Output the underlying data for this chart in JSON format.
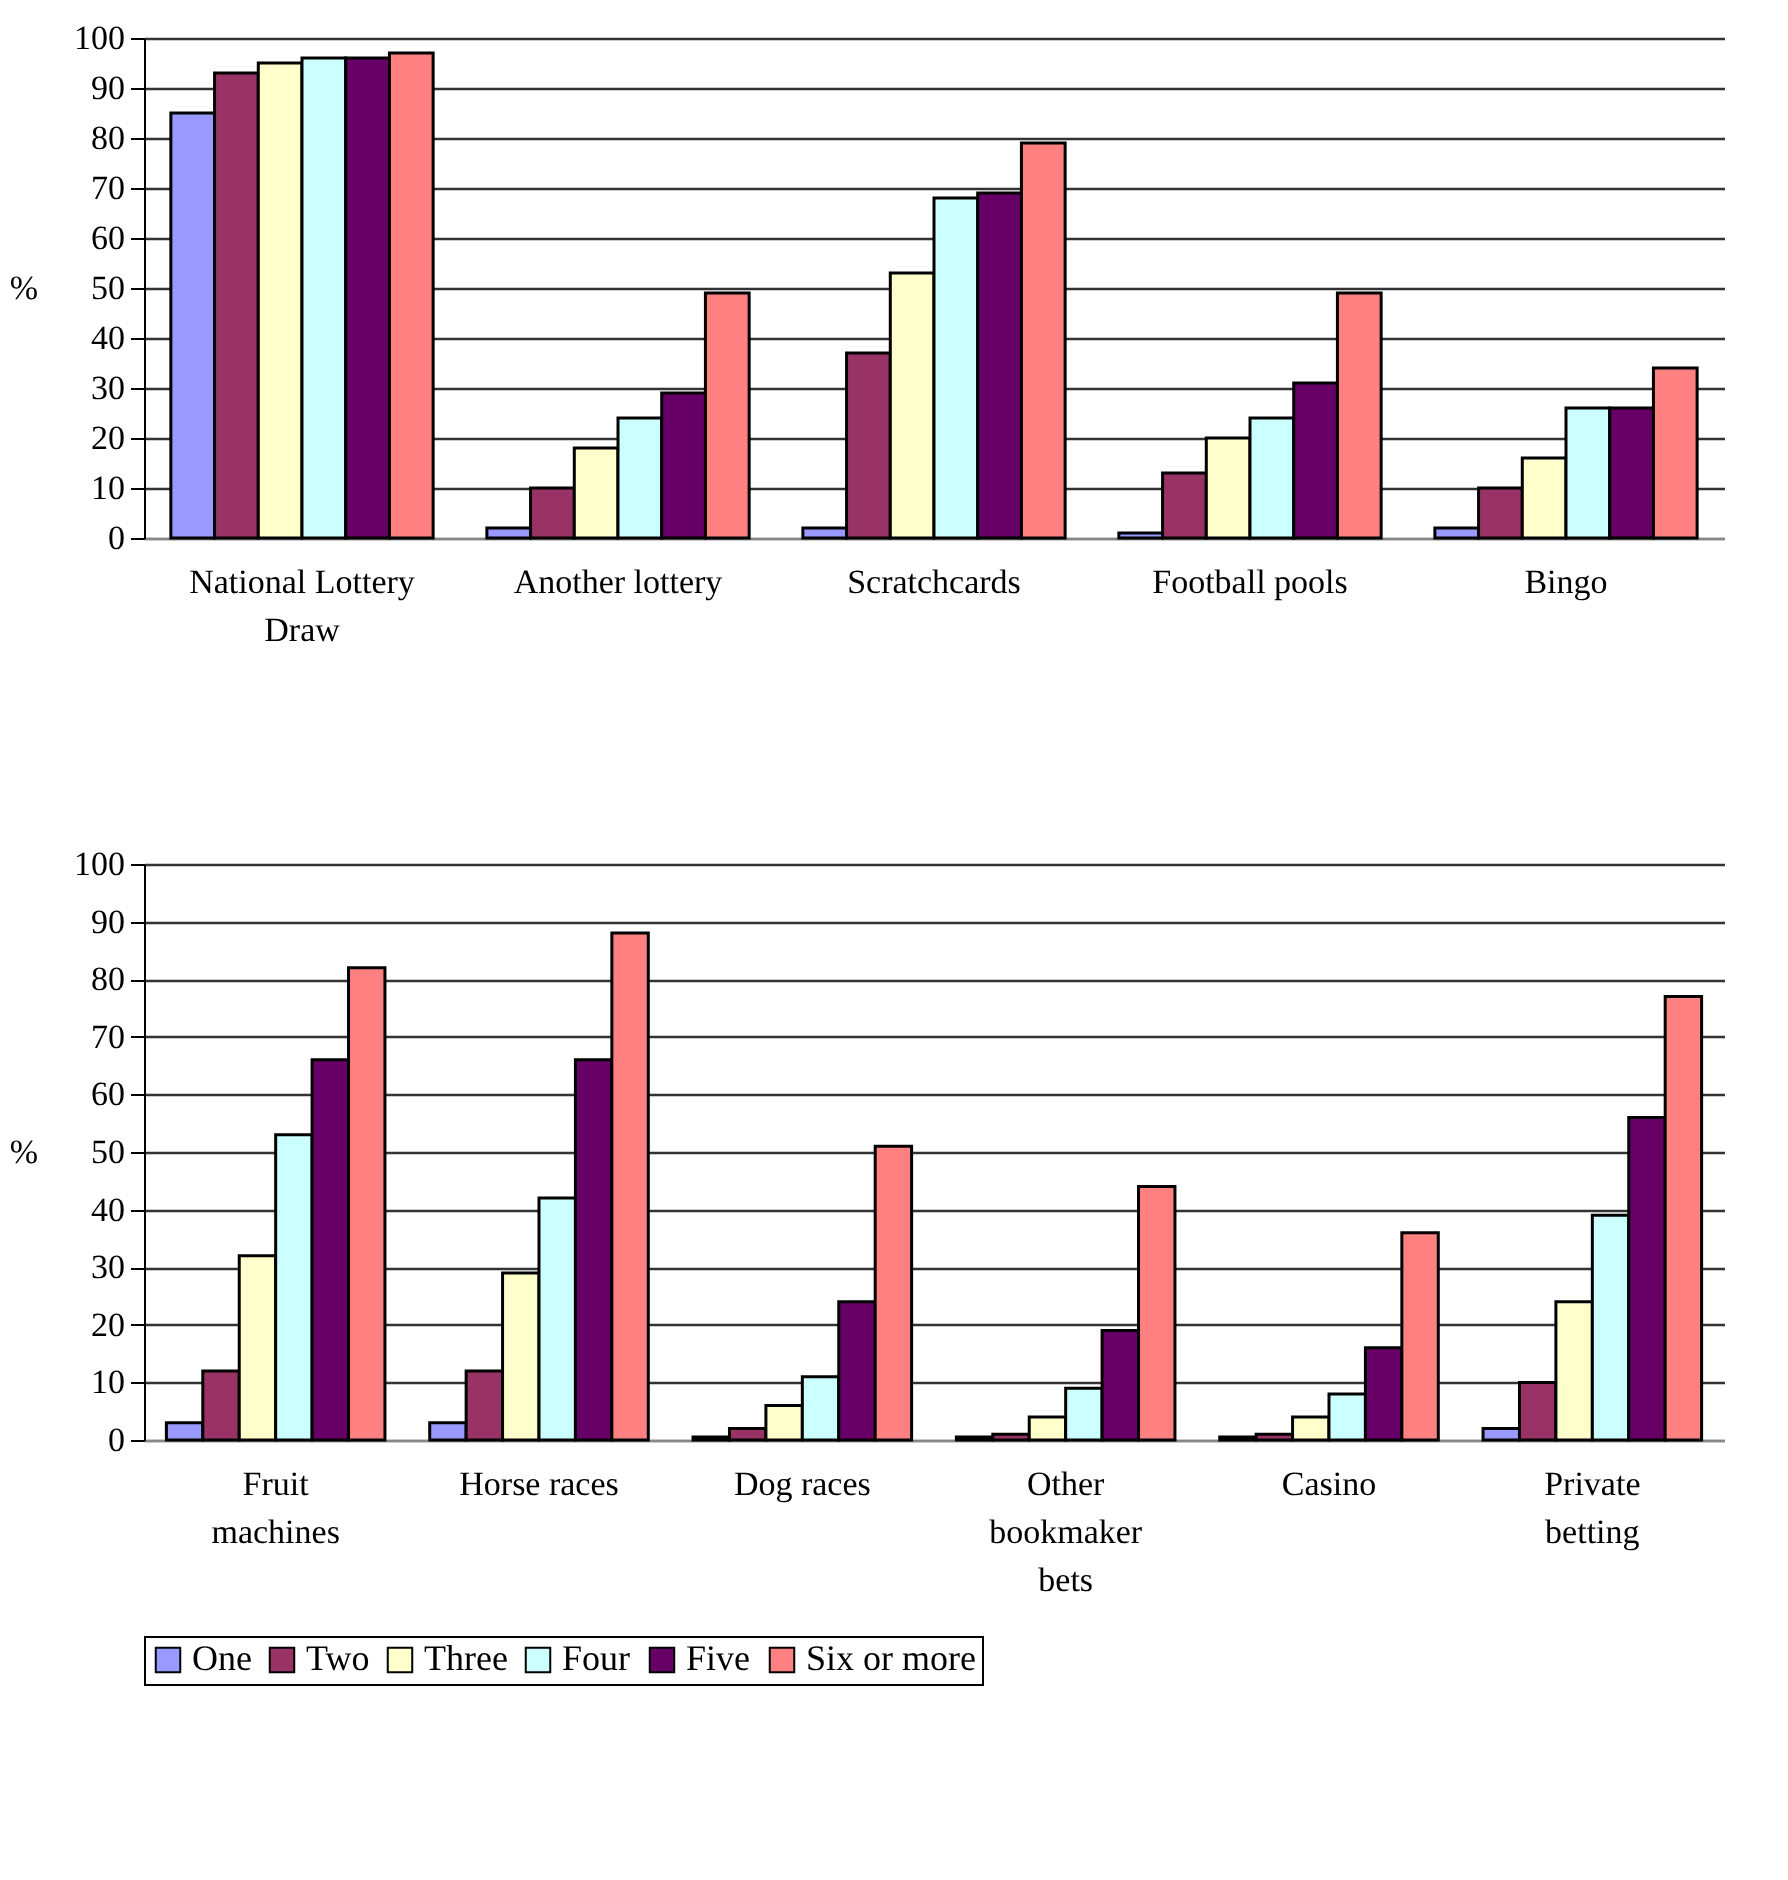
{
  "chart_data": [
    {
      "type": "bar",
      "ylabel": "%",
      "categories": [
        "National Lottery Draw",
        "Another lottery",
        "Scratchcards",
        "Football pools",
        "Bingo"
      ],
      "series": [
        {
          "name": "One",
          "color": "#9999ff",
          "values": [
            85,
            2,
            2,
            1,
            2
          ]
        },
        {
          "name": "Two",
          "color": "#993366",
          "values": [
            93,
            10,
            37,
            13,
            10
          ]
        },
        {
          "name": "Three",
          "color": "#ffffcc",
          "values": [
            95,
            18,
            53,
            20,
            16
          ]
        },
        {
          "name": "Four",
          "color": "#ccffff",
          "values": [
            96,
            24,
            68,
            24,
            26
          ]
        },
        {
          "name": "Five",
          "color": "#660066",
          "values": [
            96,
            29,
            69,
            31,
            26
          ]
        },
        {
          "name": "Six or more",
          "color": "#ff8080",
          "values": [
            97,
            49,
            79,
            49,
            34
          ]
        }
      ],
      "ylim": [
        0,
        100
      ],
      "yticks": [
        0,
        10,
        20,
        30,
        40,
        50,
        60,
        70,
        80,
        90,
        100
      ],
      "grid": "y",
      "legend": "bottom"
    },
    {
      "type": "bar",
      "ylabel": "%",
      "categories": [
        "Fruit machines",
        "Horse races",
        "Dog races",
        "Other bookmaker bets",
        "Casino",
        "Private betting"
      ],
      "series": [
        {
          "name": "One",
          "color": "#9999ff",
          "values": [
            3,
            3,
            0.5,
            0.5,
            0.5,
            2
          ]
        },
        {
          "name": "Two",
          "color": "#993366",
          "values": [
            12,
            12,
            2,
            1,
            1,
            10
          ]
        },
        {
          "name": "Three",
          "color": "#ffffcc",
          "values": [
            32,
            29,
            6,
            4,
            4,
            24
          ]
        },
        {
          "name": "Four",
          "color": "#ccffff",
          "values": [
            53,
            42,
            11,
            9,
            8,
            39
          ]
        },
        {
          "name": "Five",
          "color": "#660066",
          "values": [
            66,
            66,
            24,
            19,
            16,
            56
          ]
        },
        {
          "name": "Six or more",
          "color": "#ff8080",
          "values": [
            82,
            88,
            51,
            44,
            36,
            77
          ]
        }
      ],
      "ylim": [
        0,
        100
      ],
      "yticks": [
        0,
        10,
        20,
        30,
        40,
        50,
        60,
        70,
        80,
        90,
        100
      ],
      "grid": "y",
      "legend": "bottom"
    }
  ]
}
